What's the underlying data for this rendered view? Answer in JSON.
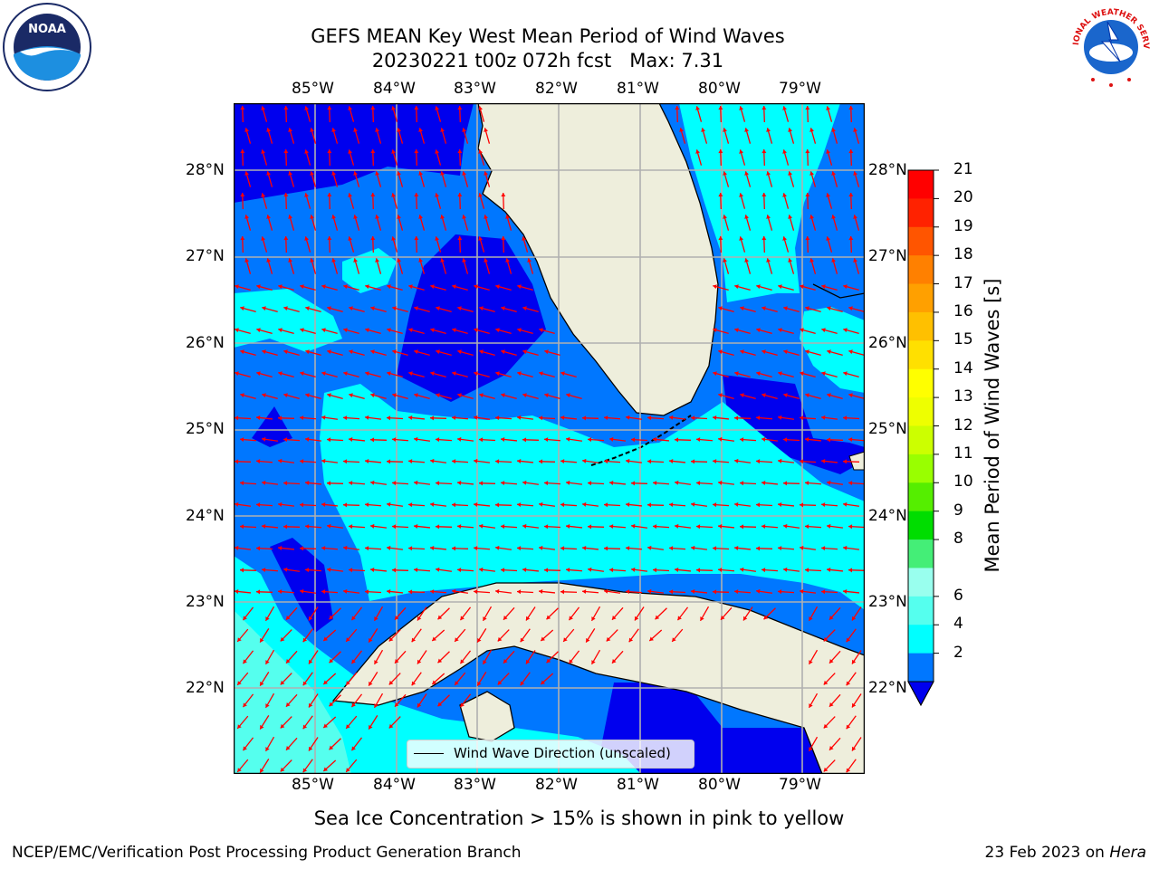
{
  "title": {
    "line1": "GEFS MEAN Key West Mean Period of Wind Waves",
    "line2": "20230221 t00z 072h fcst   Max: 7.31"
  },
  "logos": {
    "left": "NOAA",
    "right": "NATIONAL WEATHER SERVICE"
  },
  "map": {
    "lon_labels": [
      "85°W",
      "84°W",
      "83°W",
      "82°W",
      "81°W",
      "80°W",
      "79°W"
    ],
    "lat_labels": [
      "28°N",
      "27°N",
      "26°N",
      "25°N",
      "24°N",
      "23°N",
      "22°N"
    ],
    "legend_label": "Wind Wave Direction (unscaled)",
    "colors": {
      "land": "#eeeedc",
      "band_2_4": "#0077ff",
      "band_below_2": "#0000ee",
      "band_4_6": "#00ffff",
      "band_6_8": "#55ffee",
      "arrow": "#ff0000",
      "grid": "#b0b0b0"
    }
  },
  "colorbar": {
    "label": "Mean Period of Wind Waves [s]",
    "ticks": [
      "21",
      "20",
      "19",
      "18",
      "17",
      "16",
      "15",
      "14",
      "13",
      "12",
      "11",
      "10",
      "9",
      "8",
      "6",
      "4",
      "2"
    ],
    "colors": [
      "#ff0000",
      "#ff2200",
      "#ff5500",
      "#ff8000",
      "#ffa000",
      "#ffc000",
      "#ffe000",
      "#ffff00",
      "#eeff00",
      "#ccff00",
      "#99ff00",
      "#55ee00",
      "#00dd00",
      "#44ee77",
      "#99ffee",
      "#55ffee",
      "#00ffff",
      "#0077ff"
    ],
    "under_color": "#0000ee"
  },
  "notes": {
    "sea_ice": "Sea Ice Concentration > 15% is shown in pink to yellow"
  },
  "footer": {
    "left": "NCEP/EMC/Verification Post Processing Product Generation Branch",
    "right_prefix": "23 Feb 2023 on ",
    "right_host": "Hera"
  }
}
